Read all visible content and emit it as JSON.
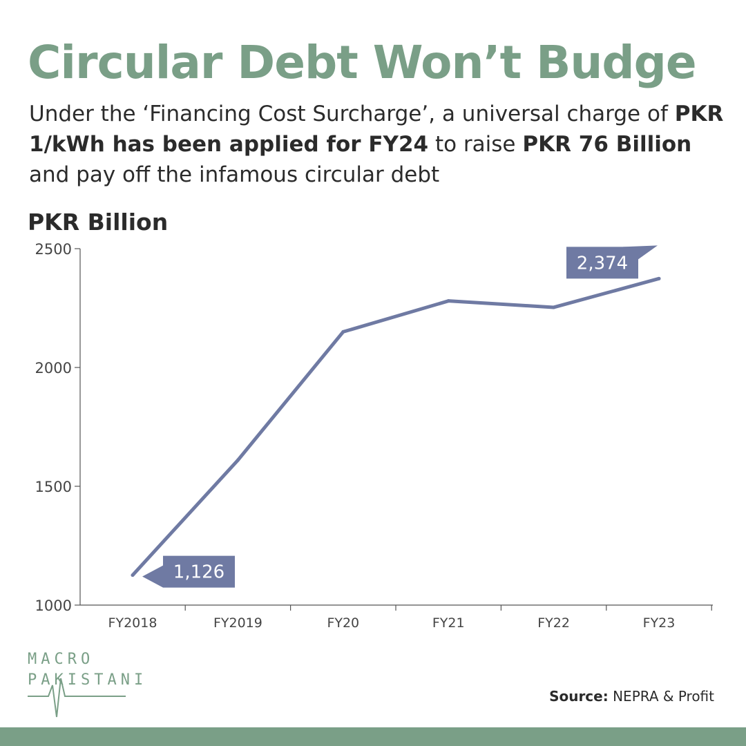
{
  "header": {
    "title": "Circular Debt Won’t Budge",
    "subtitle_part1": "Under the ‘Financing Cost Surcharge’, a universal charge of ",
    "subtitle_bold1": "PKR 1/kWh has been applied for FY24",
    "subtitle_part2": " to raise ",
    "subtitle_bold2": "PKR 76 Billion",
    "subtitle_part3": " and pay off the infamous circular debt"
  },
  "chart_data": {
    "type": "line",
    "categories": [
      "FY2018",
      "FY2019",
      "FY20",
      "FY21",
      "FY22",
      "FY23"
    ],
    "series": [
      {
        "values": [
          1126,
          1610,
          2150,
          2280,
          2253,
          2374
        ]
      }
    ],
    "ylabel": "PKR Billion",
    "ylim": [
      1000,
      2500
    ],
    "yticks": [
      1000,
      1500,
      2000,
      2500
    ],
    "data_labels": [
      {
        "index": 0,
        "text": "1,126"
      },
      {
        "index": 5,
        "text": "2,374"
      }
    ],
    "line_color": "#6f7aa3",
    "label_bg": "#6f7aa3",
    "grid": false
  },
  "logo": {
    "line1": "MACRO",
    "line2": "PAKISTANI"
  },
  "footer": {
    "source_label": "Source:",
    "source_text": " NEPRA & Profit"
  },
  "colors": {
    "accent": "#7a9f87",
    "text": "#2b2b2b",
    "series": "#6f7aa3"
  }
}
